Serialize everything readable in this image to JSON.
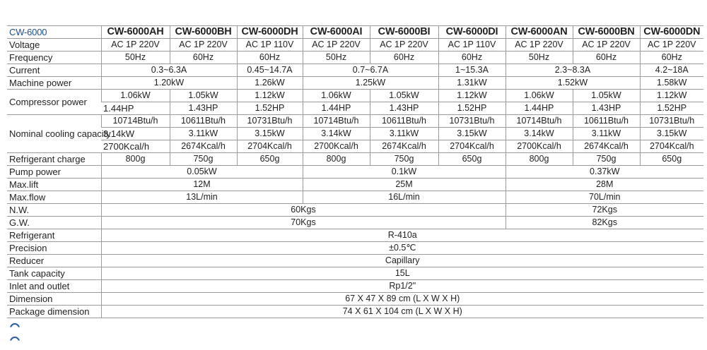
{
  "title": "CW-6000",
  "models": [
    "CW-6000AH",
    "CW-6000BH",
    "CW-6000DH",
    "CW-6000AI",
    "CW-6000BI",
    "CW-6000DI",
    "CW-6000AN",
    "CW-6000BN",
    "CW-6000DN"
  ],
  "rows": [
    {
      "label": "Voltage",
      "lines": [
        [
          [
            "AC 1P 220V",
            1
          ],
          [
            "AC 1P 220V",
            1
          ],
          [
            "AC 1P 110V",
            1
          ],
          [
            "AC 1P 220V",
            1
          ],
          [
            "AC 1P 220V",
            1
          ],
          [
            "AC 1P 110V",
            1
          ],
          [
            "AC 1P 220V",
            1
          ],
          [
            "AC 1P 220V",
            1
          ],
          [
            "AC 1P 220V",
            1
          ]
        ]
      ]
    },
    {
      "label": "Frequency",
      "lines": [
        [
          [
            "50Hz",
            1
          ],
          [
            "60Hz",
            1
          ],
          [
            "60Hz",
            1
          ],
          [
            "50Hz",
            1
          ],
          [
            "60Hz",
            1
          ],
          [
            "60Hz",
            1
          ],
          [
            "50Hz",
            1
          ],
          [
            "60Hz",
            1
          ],
          [
            "60Hz",
            1
          ]
        ]
      ]
    },
    {
      "label": "Current",
      "lines": [
        [
          [
            "0.3~6.3A",
            2
          ],
          [
            "0.45~14.7A",
            1
          ],
          [
            "0.7~6.7A",
            2
          ],
          [
            "1~15.3A",
            1
          ],
          [
            "2.3~8.3A",
            2
          ],
          [
            "4.2~18A",
            1
          ]
        ]
      ]
    },
    {
      "label": "Machine power",
      "lines": [
        [
          [
            "1.20kW",
            2
          ],
          [
            "1.26kW",
            1
          ],
          [
            "1.25kW",
            2
          ],
          [
            "1.31kW",
            1
          ],
          [
            "1.52kW",
            2
          ],
          [
            "1.58kW",
            1
          ]
        ]
      ]
    },
    {
      "label": "Compressor power",
      "lines": [
        [
          [
            "1.06kW",
            1
          ],
          [
            "1.05kW",
            1
          ],
          [
            "1.12kW",
            1
          ],
          [
            "1.06kW",
            1
          ],
          [
            "1.05kW",
            1
          ],
          [
            "1.12kW",
            1
          ],
          [
            "1.06kW",
            1
          ],
          [
            "1.05kW",
            1
          ],
          [
            "1.12kW",
            1
          ]
        ],
        [
          [
            "1.44HP",
            1
          ],
          [
            "1.43HP",
            1
          ],
          [
            "1.52HP",
            1
          ],
          [
            "1.44HP",
            1
          ],
          [
            "1.43HP",
            1
          ],
          [
            "1.52HP",
            1
          ],
          [
            "1.44HP",
            1
          ],
          [
            "1.43HP",
            1
          ],
          [
            "1.52HP",
            1
          ]
        ]
      ]
    },
    {
      "label": "Nominal cooling capacity",
      "small": true,
      "lines": [
        [
          [
            "10714Btu/h",
            1
          ],
          [
            "10611Btu/h",
            1
          ],
          [
            "10731Btu/h",
            1
          ],
          [
            "10714Btu/h",
            1
          ],
          [
            "10611Btu/h",
            1
          ],
          [
            "10731Btu/h",
            1
          ],
          [
            "10714Btu/h",
            1
          ],
          [
            "10611Btu/h",
            1
          ],
          [
            "10731Btu/h",
            1
          ]
        ],
        [
          [
            "3.14kW",
            1
          ],
          [
            "3.11kW",
            1
          ],
          [
            "3.15kW",
            1
          ],
          [
            "3.14kW",
            1
          ],
          [
            "3.11kW",
            1
          ],
          [
            "3.15kW",
            1
          ],
          [
            "3.14kW",
            1
          ],
          [
            "3.11kW",
            1
          ],
          [
            "3.15kW",
            1
          ]
        ],
        [
          [
            "2700Kcal/h",
            1
          ],
          [
            "2674Kcal/h",
            1
          ],
          [
            "2704Kcal/h",
            1
          ],
          [
            "2700Kcal/h",
            1
          ],
          [
            "2674Kcal/h",
            1
          ],
          [
            "2704Kcal/h",
            1
          ],
          [
            "2700Kcal/h",
            1
          ],
          [
            "2674Kcal/h",
            1
          ],
          [
            "2704Kcal/h",
            1
          ]
        ]
      ]
    },
    {
      "label": "Refrigerant charge",
      "lines": [
        [
          [
            "800g",
            1
          ],
          [
            "750g",
            1
          ],
          [
            "650g",
            1
          ],
          [
            "800g",
            1
          ],
          [
            "750g",
            1
          ],
          [
            "650g",
            1
          ],
          [
            "800g",
            1
          ],
          [
            "750g",
            1
          ],
          [
            "650g",
            1
          ]
        ]
      ]
    },
    {
      "label": "Pump power",
      "lines": [
        [
          [
            "0.05kW",
            3
          ],
          [
            "0.1kW",
            3
          ],
          [
            "0.37kW",
            3
          ]
        ]
      ]
    },
    {
      "label": "Max.lift",
      "lines": [
        [
          [
            "12M",
            3
          ],
          [
            "25M",
            3
          ],
          [
            "28M",
            3
          ]
        ]
      ]
    },
    {
      "label": "Max.flow",
      "lines": [
        [
          [
            "13L/min",
            3
          ],
          [
            "16L/min",
            3
          ],
          [
            "70L/min",
            3
          ]
        ]
      ]
    },
    {
      "label": "N.W.",
      "lines": [
        [
          [
            "60Kgs",
            6
          ],
          [
            "72Kgs",
            3
          ]
        ]
      ]
    },
    {
      "label": "G.W.",
      "lines": [
        [
          [
            "70Kgs",
            6
          ],
          [
            "82Kgs",
            3
          ]
        ]
      ]
    },
    {
      "label": "Refrigerant",
      "lines": [
        [
          [
            "R-410a",
            9
          ]
        ]
      ]
    },
    {
      "label": "Precision",
      "lines": [
        [
          [
            "±0.5℃",
            9
          ]
        ]
      ]
    },
    {
      "label": "Reducer",
      "lines": [
        [
          [
            "Capillary",
            9
          ]
        ]
      ]
    },
    {
      "label": "Tank capacity",
      "lines": [
        [
          [
            "15L",
            9
          ]
        ]
      ]
    },
    {
      "label": "Inlet and outlet",
      "lines": [
        [
          [
            "Rp1/2\"",
            9
          ]
        ]
      ]
    },
    {
      "label": "Dimension",
      "lines": [
        [
          [
            "67 X 47 X 89 cm (L X W X H)",
            9
          ]
        ]
      ]
    },
    {
      "label": "Package dimension",
      "lines": [
        [
          [
            "74 X 61 X 104 cm (L X W X H)",
            9
          ]
        ]
      ]
    }
  ]
}
